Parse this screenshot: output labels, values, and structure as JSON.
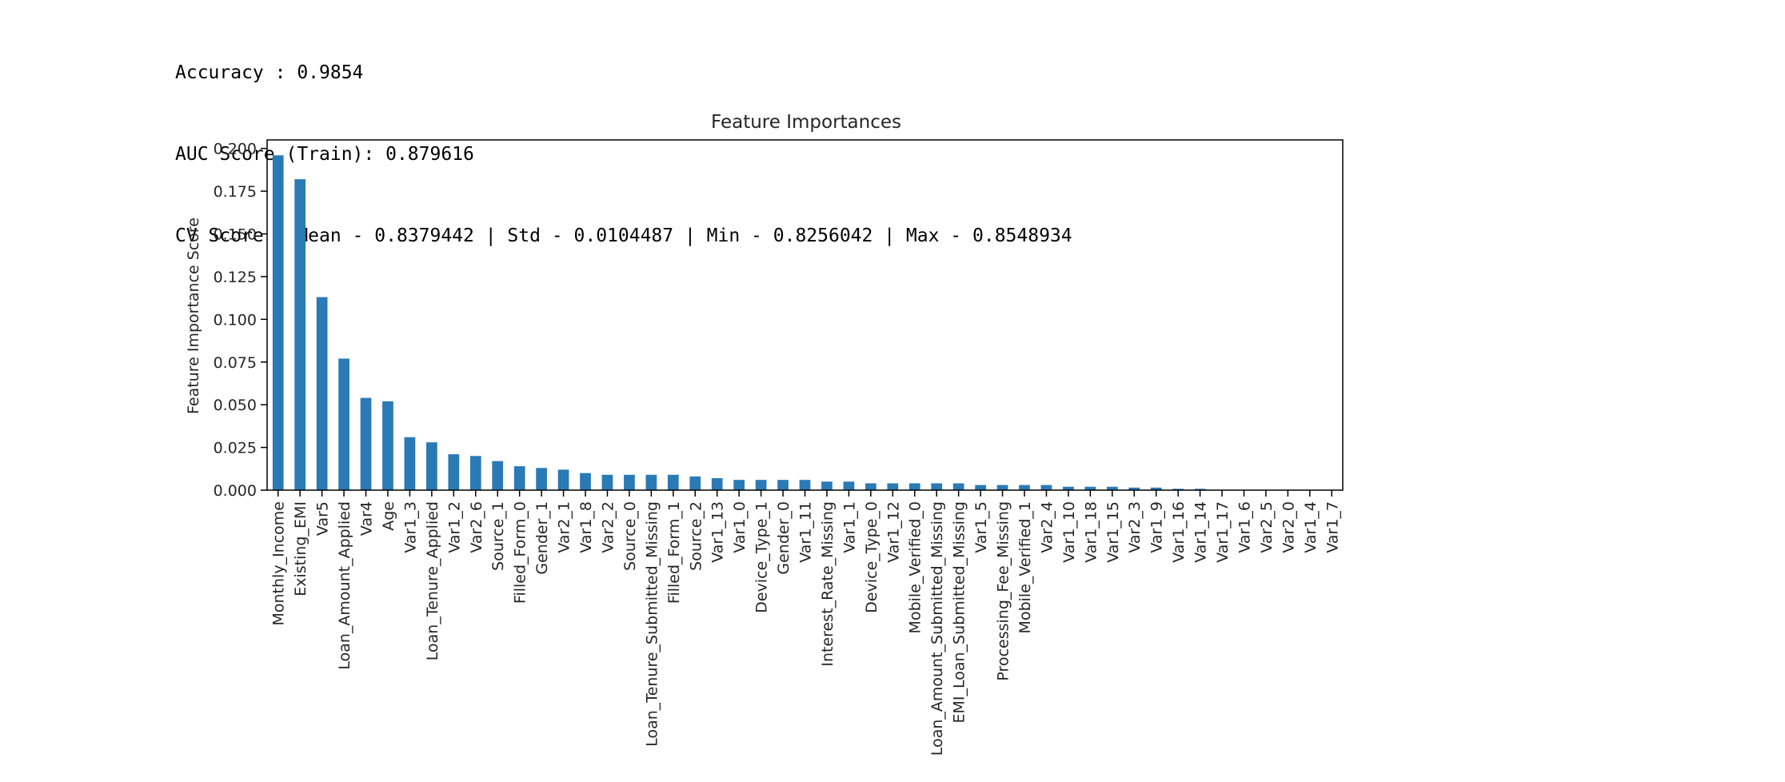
{
  "output": {
    "accuracy_line": "Accuracy : 0.9854",
    "auc_line": "AUC Score (Train): 0.879616",
    "cv_line": "CV Score : Mean - 0.8379442 | Std - 0.0104487 | Min - 0.8256042 | Max - 0.8548934"
  },
  "chart_data": {
    "type": "bar",
    "title": "Feature Importances",
    "xlabel": "",
    "ylabel": "Feature Importance Score",
    "ylim": [
      0,
      0.205
    ],
    "yticks": [
      "0.000",
      "0.025",
      "0.050",
      "0.075",
      "0.100",
      "0.125",
      "0.150",
      "0.175",
      "0.200"
    ],
    "bar_color": "#2a7ab5",
    "grid": false,
    "categories": [
      "Monthly_Income",
      "Existing_EMI",
      "Var5",
      "Loan_Amount_Applied",
      "Var4",
      "Age",
      "Var1_3",
      "Loan_Tenure_Applied",
      "Var1_2",
      "Var2_6",
      "Source_1",
      "Filled_Form_0",
      "Gender_1",
      "Var2_1",
      "Var1_8",
      "Var2_2",
      "Source_0",
      "Loan_Tenure_Submitted_Missing",
      "Filled_Form_1",
      "Source_2",
      "Var1_13",
      "Var1_0",
      "Device_Type_1",
      "Gender_0",
      "Var1_11",
      "Interest_Rate_Missing",
      "Var1_1",
      "Device_Type_0",
      "Var1_12",
      "Mobile_Verified_0",
      "Loan_Amount_Submitted_Missing",
      "EMI_Loan_Submitted_Missing",
      "Var1_5",
      "Processing_Fee_Missing",
      "Mobile_Verified_1",
      "Var2_4",
      "Var1_10",
      "Var1_18",
      "Var1_15",
      "Var2_3",
      "Var1_9",
      "Var1_16",
      "Var1_14",
      "Var1_17",
      "Var1_6",
      "Var2_5",
      "Var2_0",
      "Var1_4",
      "Var1_7"
    ],
    "values": [
      0.196,
      0.182,
      0.113,
      0.077,
      0.054,
      0.052,
      0.031,
      0.028,
      0.021,
      0.02,
      0.017,
      0.014,
      0.013,
      0.012,
      0.01,
      0.009,
      0.009,
      0.009,
      0.009,
      0.008,
      0.007,
      0.006,
      0.006,
      0.006,
      0.006,
      0.005,
      0.005,
      0.004,
      0.004,
      0.004,
      0.004,
      0.004,
      0.003,
      0.003,
      0.003,
      0.003,
      0.002,
      0.002,
      0.002,
      0.0015,
      0.0015,
      0.0008,
      0.0008,
      0.0,
      0.0,
      0.0,
      0.0,
      0.0,
      0.0
    ]
  }
}
